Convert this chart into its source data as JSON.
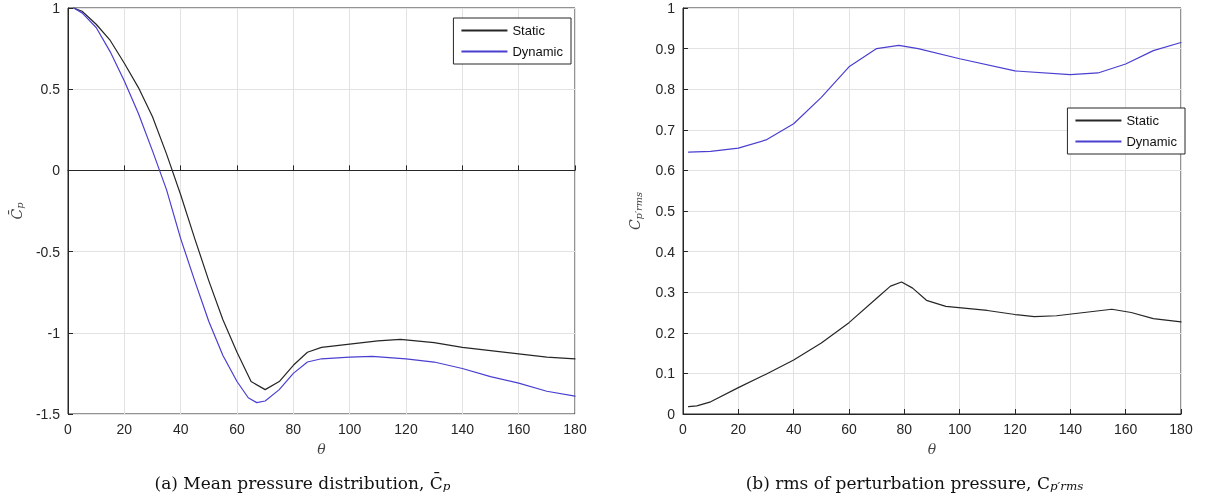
{
  "chart_data": [
    {
      "type": "line",
      "title": "(a) Mean pressure distribution, C̄$_{p}$",
      "xlabel": "θ",
      "ylabel": "C̄$_{p}$",
      "xlim": [
        0,
        180
      ],
      "xticks": [
        0,
        20,
        40,
        60,
        80,
        100,
        120,
        140,
        160,
        180
      ],
      "ylim": [
        -1.5,
        1
      ],
      "yticks": [
        -1.5,
        -1,
        -0.5,
        0,
        0.5,
        1
      ],
      "grid": true,
      "legend": "top right",
      "series": [
        {
          "name": "Static",
          "color": "#262626",
          "x": [
            2,
            5,
            10,
            15,
            20,
            25,
            30,
            35,
            40,
            45,
            50,
            55,
            60,
            65,
            70,
            75,
            80,
            85,
            90,
            100,
            110,
            118,
            130,
            140,
            150,
            160,
            170,
            180
          ],
          "values": [
            1.0,
            0.98,
            0.9,
            0.8,
            0.66,
            0.51,
            0.33,
            0.1,
            -0.15,
            -0.42,
            -0.68,
            -0.92,
            -1.12,
            -1.3,
            -1.35,
            -1.3,
            -1.2,
            -1.12,
            -1.09,
            -1.07,
            -1.05,
            -1.04,
            -1.06,
            -1.09,
            -1.11,
            -1.13,
            -1.15,
            -1.16
          ]
        },
        {
          "name": "Dynamic",
          "color": "#4a3fd0",
          "x": [
            2,
            5,
            10,
            15,
            20,
            25,
            30,
            35,
            40,
            45,
            50,
            55,
            60,
            64,
            67,
            70,
            75,
            80,
            85,
            90,
            100,
            108,
            120,
            130,
            140,
            150,
            160,
            170,
            180
          ],
          "values": [
            1.0,
            0.97,
            0.88,
            0.73,
            0.55,
            0.35,
            0.12,
            -0.12,
            -0.42,
            -0.68,
            -0.93,
            -1.14,
            -1.3,
            -1.4,
            -1.43,
            -1.42,
            -1.35,
            -1.25,
            -1.18,
            -1.16,
            -1.15,
            -1.145,
            -1.16,
            -1.18,
            -1.22,
            -1.27,
            -1.31,
            -1.36,
            -1.39
          ]
        }
      ]
    },
    {
      "type": "line",
      "title": "(b) rms of perturbation pressure, C$_{p′rms}$",
      "xlabel": "θ",
      "ylabel": "C$_{p′rms}$",
      "xlim": [
        0,
        180
      ],
      "xticks": [
        0,
        20,
        40,
        60,
        80,
        100,
        120,
        140,
        160,
        180
      ],
      "ylim": [
        0,
        1
      ],
      "yticks": [
        0,
        0.1,
        0.2,
        0.3,
        0.4,
        0.5,
        0.6,
        0.7,
        0.8,
        0.9,
        1
      ],
      "grid": true,
      "legend": "right",
      "series": [
        {
          "name": "Static",
          "color": "#262626",
          "x": [
            2,
            5,
            10,
            20,
            30,
            40,
            50,
            60,
            70,
            75,
            79,
            83,
            88,
            95,
            110,
            120,
            127,
            135,
            145,
            155,
            162,
            170,
            180
          ],
          "values": [
            0.018,
            0.02,
            0.03,
            0.065,
            0.098,
            0.133,
            0.175,
            0.225,
            0.285,
            0.315,
            0.325,
            0.31,
            0.28,
            0.265,
            0.255,
            0.245,
            0.24,
            0.242,
            0.25,
            0.258,
            0.25,
            0.235,
            0.227
          ]
        },
        {
          "name": "Dynamic",
          "color": "#4a3fd0",
          "x": [
            2,
            10,
            20,
            30,
            40,
            50,
            60,
            70,
            78,
            85,
            100,
            120,
            140,
            150,
            160,
            170,
            180
          ],
          "values": [
            0.645,
            0.647,
            0.655,
            0.675,
            0.715,
            0.78,
            0.855,
            0.9,
            0.908,
            0.9,
            0.875,
            0.845,
            0.836,
            0.84,
            0.862,
            0.895,
            0.915
          ]
        }
      ]
    }
  ]
}
